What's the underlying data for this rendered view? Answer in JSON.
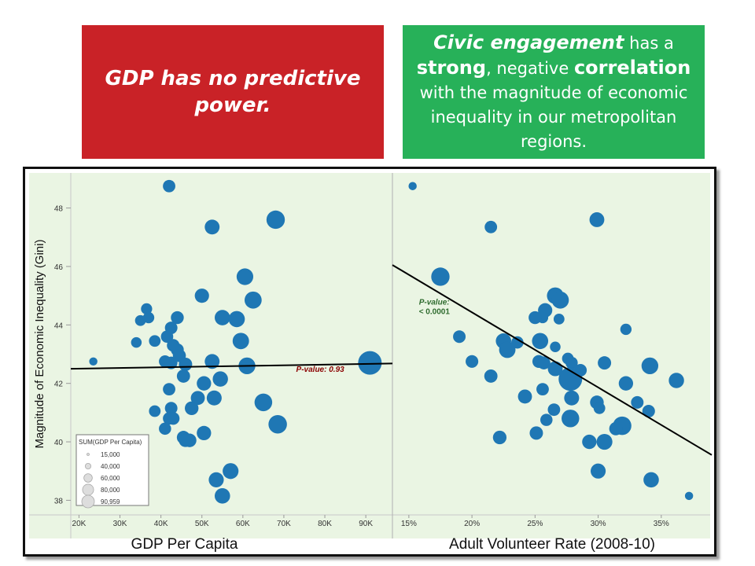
{
  "callouts": {
    "left": {
      "line1": "GDP has no predictive",
      "line2": "power.",
      "color": "#c92227"
    },
    "right": {
      "l1_a": "Civic engagement",
      "l1_b": " has a",
      "l2_a": "strong",
      "l2_b": ", negative ",
      "l2_c": "correlation",
      "l3": "with the magnitude of economic",
      "l4": "inequality in our metropolitan",
      "l5": "regions.",
      "color": "#27b159"
    }
  },
  "legend": {
    "title": "SUM(GDP Per Capita)",
    "items": [
      "15,000",
      "40,000",
      "60,000",
      "80,000",
      "90,959"
    ],
    "values": [
      15000,
      40000,
      60000,
      80000,
      90959
    ]
  },
  "colors": {
    "dot": "#1f77b4",
    "panel_bg": "#eaf5e3",
    "left_pvalue": "#8b0000",
    "right_pvalue": "#2e6b2e"
  },
  "chart_data": {
    "type": "scatter",
    "ylabel": "Magnitude of Economic Inequality (Gini)",
    "ylim": [
      37.5,
      49.2
    ],
    "yticks": [
      38,
      40,
      42,
      44,
      46,
      48
    ],
    "grid": false,
    "panels": [
      {
        "name": "gdp",
        "xlabel": "GDP Per Capita",
        "xlim": [
          18000,
          96500
        ],
        "xticks": [
          20000,
          30000,
          40000,
          50000,
          60000,
          70000,
          80000,
          90000
        ],
        "xtick_labels": [
          "20K",
          "30K",
          "40K",
          "50K",
          "60K",
          "70K",
          "80K",
          "90K"
        ],
        "trend": {
          "x": [
            18000,
            96500
          ],
          "y": [
            42.5,
            42.68
          ]
        },
        "annotation": {
          "text": "P-value: 0.93",
          "x": 73000,
          "y": 42.4
        },
        "points": [
          {
            "x": 23500,
            "y": 42.75
          },
          {
            "x": 42000,
            "y": 48.75
          },
          {
            "x": 52500,
            "y": 47.35
          },
          {
            "x": 68000,
            "y": 47.6
          },
          {
            "x": 60500,
            "y": 45.65
          },
          {
            "x": 62500,
            "y": 44.85
          },
          {
            "x": 50000,
            "y": 45.0
          },
          {
            "x": 36500,
            "y": 44.55
          },
          {
            "x": 44000,
            "y": 44.25
          },
          {
            "x": 35000,
            "y": 44.15
          },
          {
            "x": 37000,
            "y": 44.25
          },
          {
            "x": 42500,
            "y": 43.9
          },
          {
            "x": 41500,
            "y": 43.6
          },
          {
            "x": 55000,
            "y": 44.25
          },
          {
            "x": 58500,
            "y": 44.2
          },
          {
            "x": 59500,
            "y": 43.45
          },
          {
            "x": 34000,
            "y": 43.4
          },
          {
            "x": 38500,
            "y": 43.45
          },
          {
            "x": 43000,
            "y": 43.3
          },
          {
            "x": 44000,
            "y": 43.15
          },
          {
            "x": 44500,
            "y": 42.95
          },
          {
            "x": 41000,
            "y": 42.75
          },
          {
            "x": 42500,
            "y": 42.7
          },
          {
            "x": 46000,
            "y": 42.65
          },
          {
            "x": 52500,
            "y": 42.75
          },
          {
            "x": 61000,
            "y": 42.6
          },
          {
            "x": 91000,
            "y": 42.7
          },
          {
            "x": 45500,
            "y": 42.25
          },
          {
            "x": 50500,
            "y": 42.0
          },
          {
            "x": 54500,
            "y": 42.15
          },
          {
            "x": 42000,
            "y": 41.8
          },
          {
            "x": 49000,
            "y": 41.5
          },
          {
            "x": 53000,
            "y": 41.5
          },
          {
            "x": 47500,
            "y": 41.15
          },
          {
            "x": 42500,
            "y": 41.15
          },
          {
            "x": 38500,
            "y": 41.05
          },
          {
            "x": 42000,
            "y": 40.8
          },
          {
            "x": 43000,
            "y": 40.8
          },
          {
            "x": 41000,
            "y": 40.45
          },
          {
            "x": 65000,
            "y": 41.35
          },
          {
            "x": 68500,
            "y": 40.6
          },
          {
            "x": 45500,
            "y": 40.15
          },
          {
            "x": 46000,
            "y": 40.05
          },
          {
            "x": 47000,
            "y": 40.05
          },
          {
            "x": 50500,
            "y": 40.3
          },
          {
            "x": 57000,
            "y": 39.0
          },
          {
            "x": 53500,
            "y": 38.7
          },
          {
            "x": 55000,
            "y": 38.15
          }
        ]
      },
      {
        "name": "volunteer",
        "xlabel": "Adult Volunteer Rate (2008-10)",
        "xlim": [
          0.137,
          0.39
        ],
        "xticks": [
          0.15,
          0.2,
          0.25,
          0.3,
          0.35
        ],
        "xtick_labels": [
          "15%",
          "20%",
          "25%",
          "30%",
          "35%"
        ],
        "trend": {
          "x": [
            0.137,
            0.39
          ],
          "y": [
            46.05,
            39.55
          ]
        },
        "annotation": {
          "text": "P-value:",
          "text2": "< 0.0001",
          "x": 0.158,
          "y": 44.7
        },
        "points": [
          {
            "x": 0.153,
            "y": 48.75
          },
          {
            "x": 0.215,
            "y": 47.35
          },
          {
            "x": 0.299,
            "y": 47.6
          },
          {
            "x": 0.175,
            "y": 45.65
          },
          {
            "x": 0.266,
            "y": 45.0
          },
          {
            "x": 0.27,
            "y": 44.85
          },
          {
            "x": 0.258,
            "y": 44.5
          },
          {
            "x": 0.256,
            "y": 44.25
          },
          {
            "x": 0.25,
            "y": 44.25
          },
          {
            "x": 0.269,
            "y": 44.2
          },
          {
            "x": 0.322,
            "y": 43.85
          },
          {
            "x": 0.19,
            "y": 43.6
          },
          {
            "x": 0.236,
            "y": 43.4
          },
          {
            "x": 0.225,
            "y": 43.45
          },
          {
            "x": 0.254,
            "y": 43.45
          },
          {
            "x": 0.228,
            "y": 43.15
          },
          {
            "x": 0.266,
            "y": 43.25
          },
          {
            "x": 0.276,
            "y": 42.85
          },
          {
            "x": 0.2,
            "y": 42.75
          },
          {
            "x": 0.253,
            "y": 42.75
          },
          {
            "x": 0.257,
            "y": 42.7
          },
          {
            "x": 0.279,
            "y": 42.7
          },
          {
            "x": 0.286,
            "y": 42.45
          },
          {
            "x": 0.305,
            "y": 42.7
          },
          {
            "x": 0.266,
            "y": 42.5
          },
          {
            "x": 0.341,
            "y": 42.6
          },
          {
            "x": 0.278,
            "y": 42.15
          },
          {
            "x": 0.215,
            "y": 42.25
          },
          {
            "x": 0.322,
            "y": 42.0
          },
          {
            "x": 0.362,
            "y": 42.1
          },
          {
            "x": 0.256,
            "y": 41.8
          },
          {
            "x": 0.242,
            "y": 41.55
          },
          {
            "x": 0.279,
            "y": 41.5
          },
          {
            "x": 0.299,
            "y": 41.35
          },
          {
            "x": 0.331,
            "y": 41.35
          },
          {
            "x": 0.301,
            "y": 41.15
          },
          {
            "x": 0.265,
            "y": 41.1
          },
          {
            "x": 0.34,
            "y": 41.05
          },
          {
            "x": 0.259,
            "y": 40.75
          },
          {
            "x": 0.278,
            "y": 40.8
          },
          {
            "x": 0.319,
            "y": 40.55
          },
          {
            "x": 0.314,
            "y": 40.45
          },
          {
            "x": 0.251,
            "y": 40.3
          },
          {
            "x": 0.222,
            "y": 40.15
          },
          {
            "x": 0.293,
            "y": 40.0
          },
          {
            "x": 0.305,
            "y": 40.0
          },
          {
            "x": 0.3,
            "y": 39.0
          },
          {
            "x": 0.342,
            "y": 38.7
          },
          {
            "x": 0.372,
            "y": 38.15
          }
        ]
      }
    ]
  }
}
